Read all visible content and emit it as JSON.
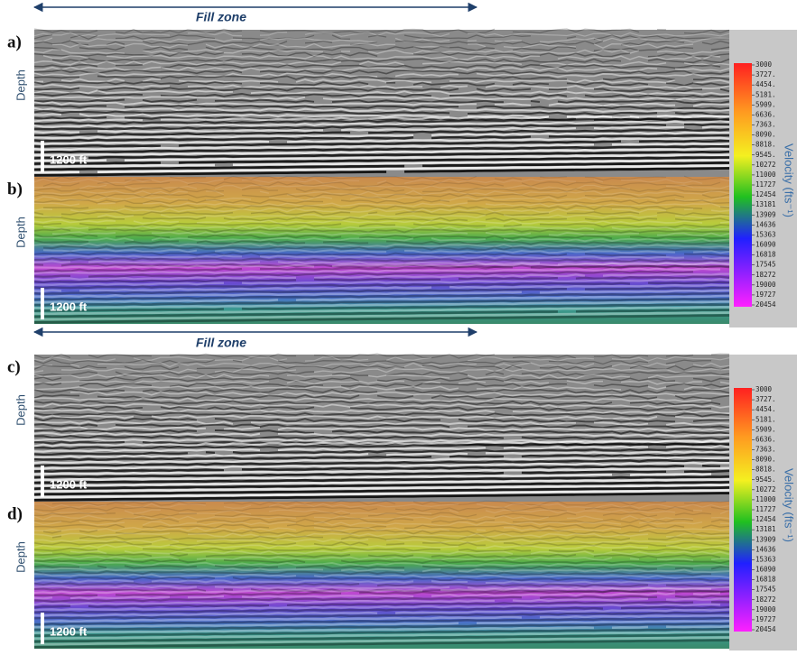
{
  "figures": [
    {
      "fill_zone": "Fill zone",
      "panels": [
        {
          "label": "a)",
          "axis": "Depth",
          "scale": "1200 ft"
        },
        {
          "label": "b)",
          "axis": "Depth",
          "scale": "1200 ft"
        }
      ],
      "colorbar": {
        "title": "Velocity (fts⁻¹)",
        "labels": [
          "3000",
          "3727.",
          "4454.",
          "5181.",
          "5909.",
          "6636.",
          "7363.",
          "8090.",
          "8818.",
          "9545.",
          "10272",
          "11000",
          "11727",
          "12454",
          "13181",
          "13909",
          "14636",
          "15363",
          "16090",
          "16818",
          "17545",
          "18272",
          "19000",
          "19727",
          "20454"
        ]
      }
    },
    {
      "fill_zone": "Fill zone",
      "panels": [
        {
          "label": "c)",
          "axis": "Depth",
          "scale": "1200 ft"
        },
        {
          "label": "d)",
          "axis": "Depth",
          "scale": "1200 ft"
        }
      ],
      "colorbar": {
        "title": "Velocity (fts⁻¹)",
        "labels": [
          "3000",
          "3727.",
          "4454.",
          "5181.",
          "5909.",
          "6636.",
          "7363.",
          "8090.",
          "8818.",
          "9545.",
          "10272",
          "11000",
          "11727",
          "12454",
          "13181",
          "13909",
          "14636",
          "15363",
          "16090",
          "16818",
          "17545",
          "18272",
          "19000",
          "19727",
          "20454"
        ]
      }
    }
  ]
}
